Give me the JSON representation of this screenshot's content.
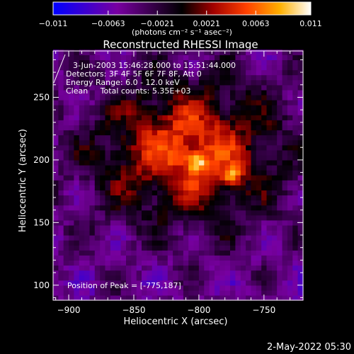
{
  "chart_data": {
    "type": "heatmap",
    "title": "Reconstructed RHESSI Image",
    "xlabel": "Heliocentric X (arcsec)",
    "ylabel": "Heliocentric Y (arcsec)",
    "xlim": [
      -912,
      -720
    ],
    "ylim": [
      88,
      287
    ],
    "x_ticks": [
      -900,
      -850,
      -800,
      -750
    ],
    "y_ticks": [
      100,
      150,
      200,
      250
    ],
    "colorbar": {
      "range": [
        -0.011,
        0.011
      ],
      "tick_values": [
        -0.011,
        -0.0063,
        -0.0021,
        0.0021,
        0.0063,
        0.011
      ],
      "tick_labels": [
        "−0.011",
        "−0.0063",
        "−0.0021",
        "0.0021",
        "0.0063",
        "0.011"
      ],
      "unit_label": "(photons cm⁻² s⁻¹ asec⁻²)",
      "colors": [
        "#0000ff",
        "#7800a0",
        "#000000",
        "#a00000",
        "#ff4000",
        "#ffb000",
        "#ffffff"
      ]
    },
    "annotations": [
      "3-Jun-2003 15:46:28.000 to 15:51:44.000",
      "Detectors: 3F 4F 5F 6F 7F 8F, Att 0",
      "Energy Range: 6.0 - 12.0 keV",
      "Clean     Total counts: 5.35E+03"
    ],
    "peak_label": "Position of Peak = [-775,187]",
    "sources": [
      {
        "x": -802,
        "y": 199,
        "peak": 0.011
      },
      {
        "x": -775,
        "y": 187,
        "peak": 0.011
      }
    ]
  },
  "footer": {
    "date_stamp": "2-May-2022 05:30"
  }
}
